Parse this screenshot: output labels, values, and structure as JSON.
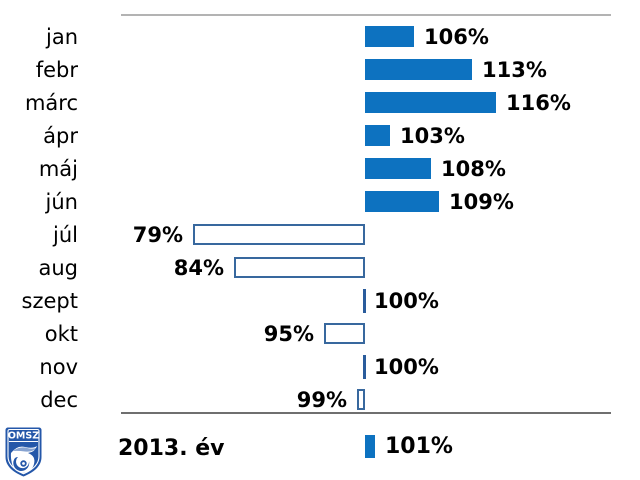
{
  "colors": {
    "bar_fill": "#0d72c0",
    "bar_outline": "#38689e",
    "tick_100": "#2a5c9c",
    "top_line": "#b3b3b3",
    "bottom_line": "#6f6f6f",
    "text": "#000000",
    "logo_blue": "#2457a9"
  },
  "chart_data": {
    "type": "bar",
    "orientation": "horizontal",
    "baseline_value": 100,
    "unit": "%",
    "xlim": [
      70,
      125
    ],
    "grid": "off",
    "categories": [
      "jan",
      "febr",
      "márc",
      "ápr",
      "máj",
      "jún",
      "júl",
      "aug",
      "szept",
      "okt",
      "nov",
      "dec"
    ],
    "values": [
      106,
      113,
      116,
      103,
      108,
      109,
      79,
      84,
      100,
      95,
      100,
      99
    ],
    "value_labels": [
      "106%",
      "113%",
      "116%",
      "103%",
      "108%",
      "109%",
      "79%",
      "84%",
      "100%",
      "95%",
      "100%",
      "99%"
    ],
    "annual": {
      "label": "2013. év",
      "value": 101,
      "value_label": "101%"
    },
    "title": "",
    "xlabel": "",
    "ylabel": ""
  },
  "logo": {
    "text": "OMSZ"
  }
}
